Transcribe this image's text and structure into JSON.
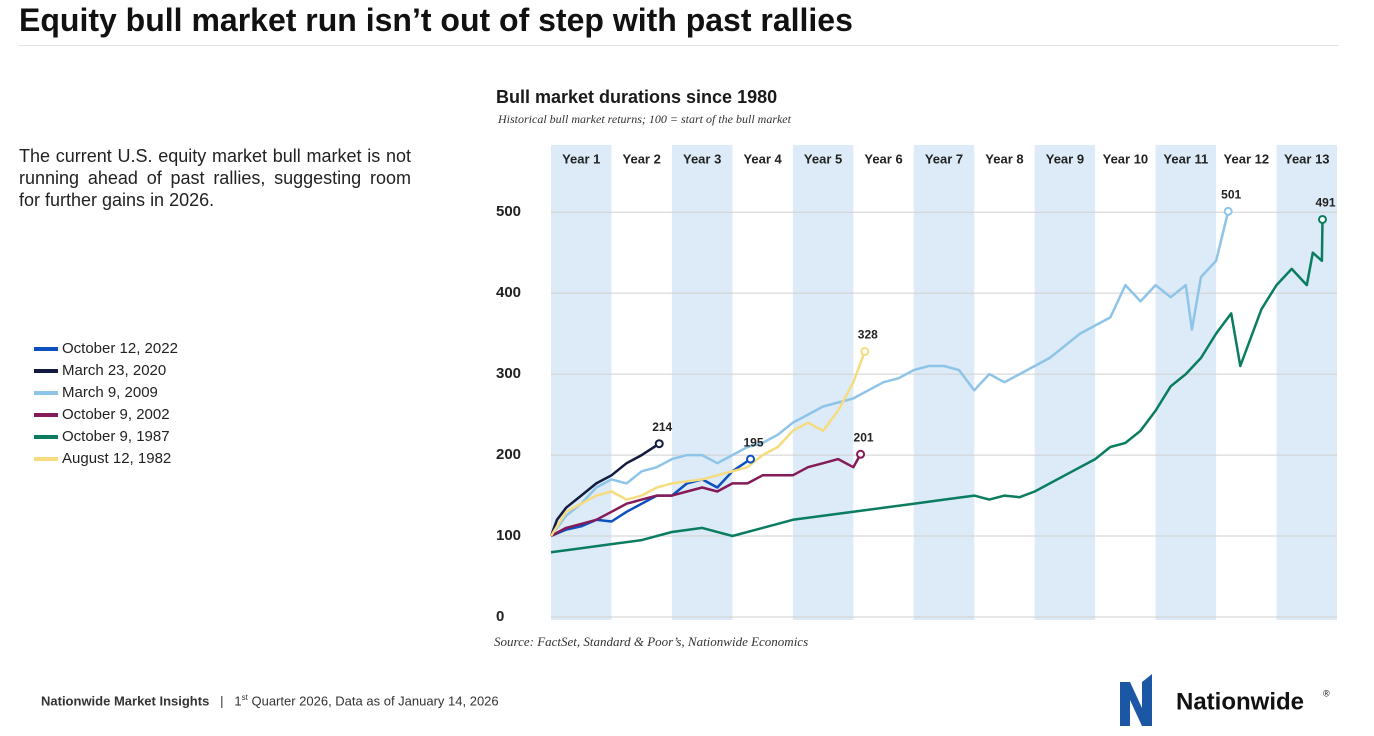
{
  "title": "Equity bull market run isn’t out of step with past rallies",
  "body": "The current U.S. equity market bull market is not running ahead of past rallies, suggesting room for further gains in 2026.",
  "footer": {
    "brand": "Nationwide Market Insights",
    "separator": "|",
    "quarter_number": "1",
    "quarter_suffix": "st",
    "quarter_rest": " Quarter 2026, Data as of January 14, 2026"
  },
  "logo": {
    "text": "Nationwide",
    "mark": "®"
  },
  "chart_data": {
    "type": "line",
    "title": "Bull market durations since 1980",
    "subtitle": "Historical bull market returns; 100 = start of the bull market",
    "source": "Source:  FactSet, Standard & Poor’s, Nationwide Economics",
    "categories": [
      "Year 1",
      "Year 2",
      "Year 3",
      "Year 4",
      "Year 5",
      "Year 6",
      "Year 7",
      "Year 8",
      "Year 9",
      "Year 10",
      "Year 11",
      "Year 12",
      "Year 13"
    ],
    "xlim": [
      0,
      13
    ],
    "ylim": [
      0,
      583
    ],
    "yticks": [
      0,
      100,
      200,
      300,
      400,
      500
    ],
    "grid": true,
    "legend": "left",
    "series": [
      {
        "name": "October 12, 2022",
        "color": "#0c4fbf",
        "x": [
          0,
          0.25,
          0.5,
          0.75,
          1,
          1.25,
          1.5,
          1.75,
          2,
          2.25,
          2.5,
          2.75,
          3,
          3.3
        ],
        "values": [
          100,
          108,
          112,
          120,
          118,
          130,
          140,
          150,
          150,
          165,
          170,
          160,
          180,
          195
        ]
      },
      {
        "name": "March 23, 2020",
        "color": "#121a3f",
        "x": [
          0,
          0.1,
          0.25,
          0.5,
          0.75,
          1,
          1.25,
          1.5,
          1.79
        ],
        "values": [
          100,
          120,
          135,
          150,
          165,
          175,
          190,
          200,
          214
        ]
      },
      {
        "name": "March 9, 2009",
        "color": "#8ec4e8",
        "x": [
          0,
          0.25,
          0.5,
          0.75,
          1,
          1.25,
          1.5,
          1.75,
          2,
          2.25,
          2.5,
          2.75,
          3,
          3.25,
          3.5,
          3.75,
          4,
          4.25,
          4.5,
          4.75,
          5,
          5.25,
          5.5,
          5.75,
          6,
          6.25,
          6.5,
          6.75,
          7,
          7.25,
          7.5,
          7.75,
          8,
          8.25,
          8.5,
          8.75,
          9,
          9.25,
          9.5,
          9.75,
          10,
          10.25,
          10.5,
          10.6,
          10.75,
          11,
          11.2
        ],
        "values": [
          100,
          125,
          140,
          160,
          170,
          165,
          180,
          185,
          195,
          200,
          200,
          190,
          200,
          210,
          215,
          225,
          240,
          250,
          260,
          265,
          270,
          280,
          290,
          295,
          305,
          310,
          310,
          305,
          280,
          300,
          290,
          300,
          310,
          320,
          335,
          350,
          360,
          370,
          410,
          390,
          410,
          395,
          410,
          355,
          420,
          440,
          501
        ]
      },
      {
        "name": "October 9, 2002",
        "color": "#851a58",
        "x": [
          0,
          0.25,
          0.5,
          0.75,
          1,
          1.25,
          1.5,
          1.75,
          2,
          2.25,
          2.5,
          2.75,
          3,
          3.25,
          3.5,
          3.75,
          4,
          4.25,
          4.5,
          4.75,
          5,
          5.12
        ],
        "values": [
          100,
          110,
          115,
          120,
          130,
          140,
          145,
          150,
          150,
          155,
          160,
          155,
          165,
          165,
          175,
          175,
          175,
          185,
          190,
          195,
          185,
          201
        ]
      },
      {
        "name": "October 9, 1987",
        "color": "#0a7d60",
        "x": [
          0,
          0.5,
          1,
          1.5,
          2,
          2.5,
          3,
          3.5,
          4,
          4.5,
          5,
          5.5,
          6,
          6.5,
          7,
          7.25,
          7.5,
          7.75,
          8,
          8.5,
          9,
          9.25,
          9.5,
          9.75,
          10,
          10.25,
          10.5,
          10.75,
          11,
          11.25,
          11.4,
          11.75,
          12,
          12.25,
          12.5,
          12.6,
          12.75,
          12.76
        ],
        "values": [
          80,
          85,
          90,
          95,
          105,
          110,
          100,
          110,
          120,
          125,
          130,
          135,
          140,
          145,
          150,
          145,
          150,
          148,
          155,
          175,
          195,
          210,
          215,
          230,
          255,
          285,
          300,
          320,
          350,
          375,
          310,
          380,
          410,
          430,
          410,
          450,
          440,
          491
        ]
      },
      {
        "name": "August 12, 1982",
        "color": "#f6dc7e",
        "x": [
          0,
          0.25,
          0.5,
          0.75,
          1,
          1.25,
          1.5,
          1.75,
          2,
          2.5,
          3,
          3.25,
          3.5,
          3.75,
          4,
          4.25,
          4.5,
          4.75,
          5,
          5.19
        ],
        "values": [
          100,
          130,
          140,
          150,
          155,
          145,
          150,
          160,
          165,
          170,
          180,
          185,
          200,
          210,
          230,
          240,
          230,
          255,
          290,
          328
        ]
      }
    ]
  }
}
